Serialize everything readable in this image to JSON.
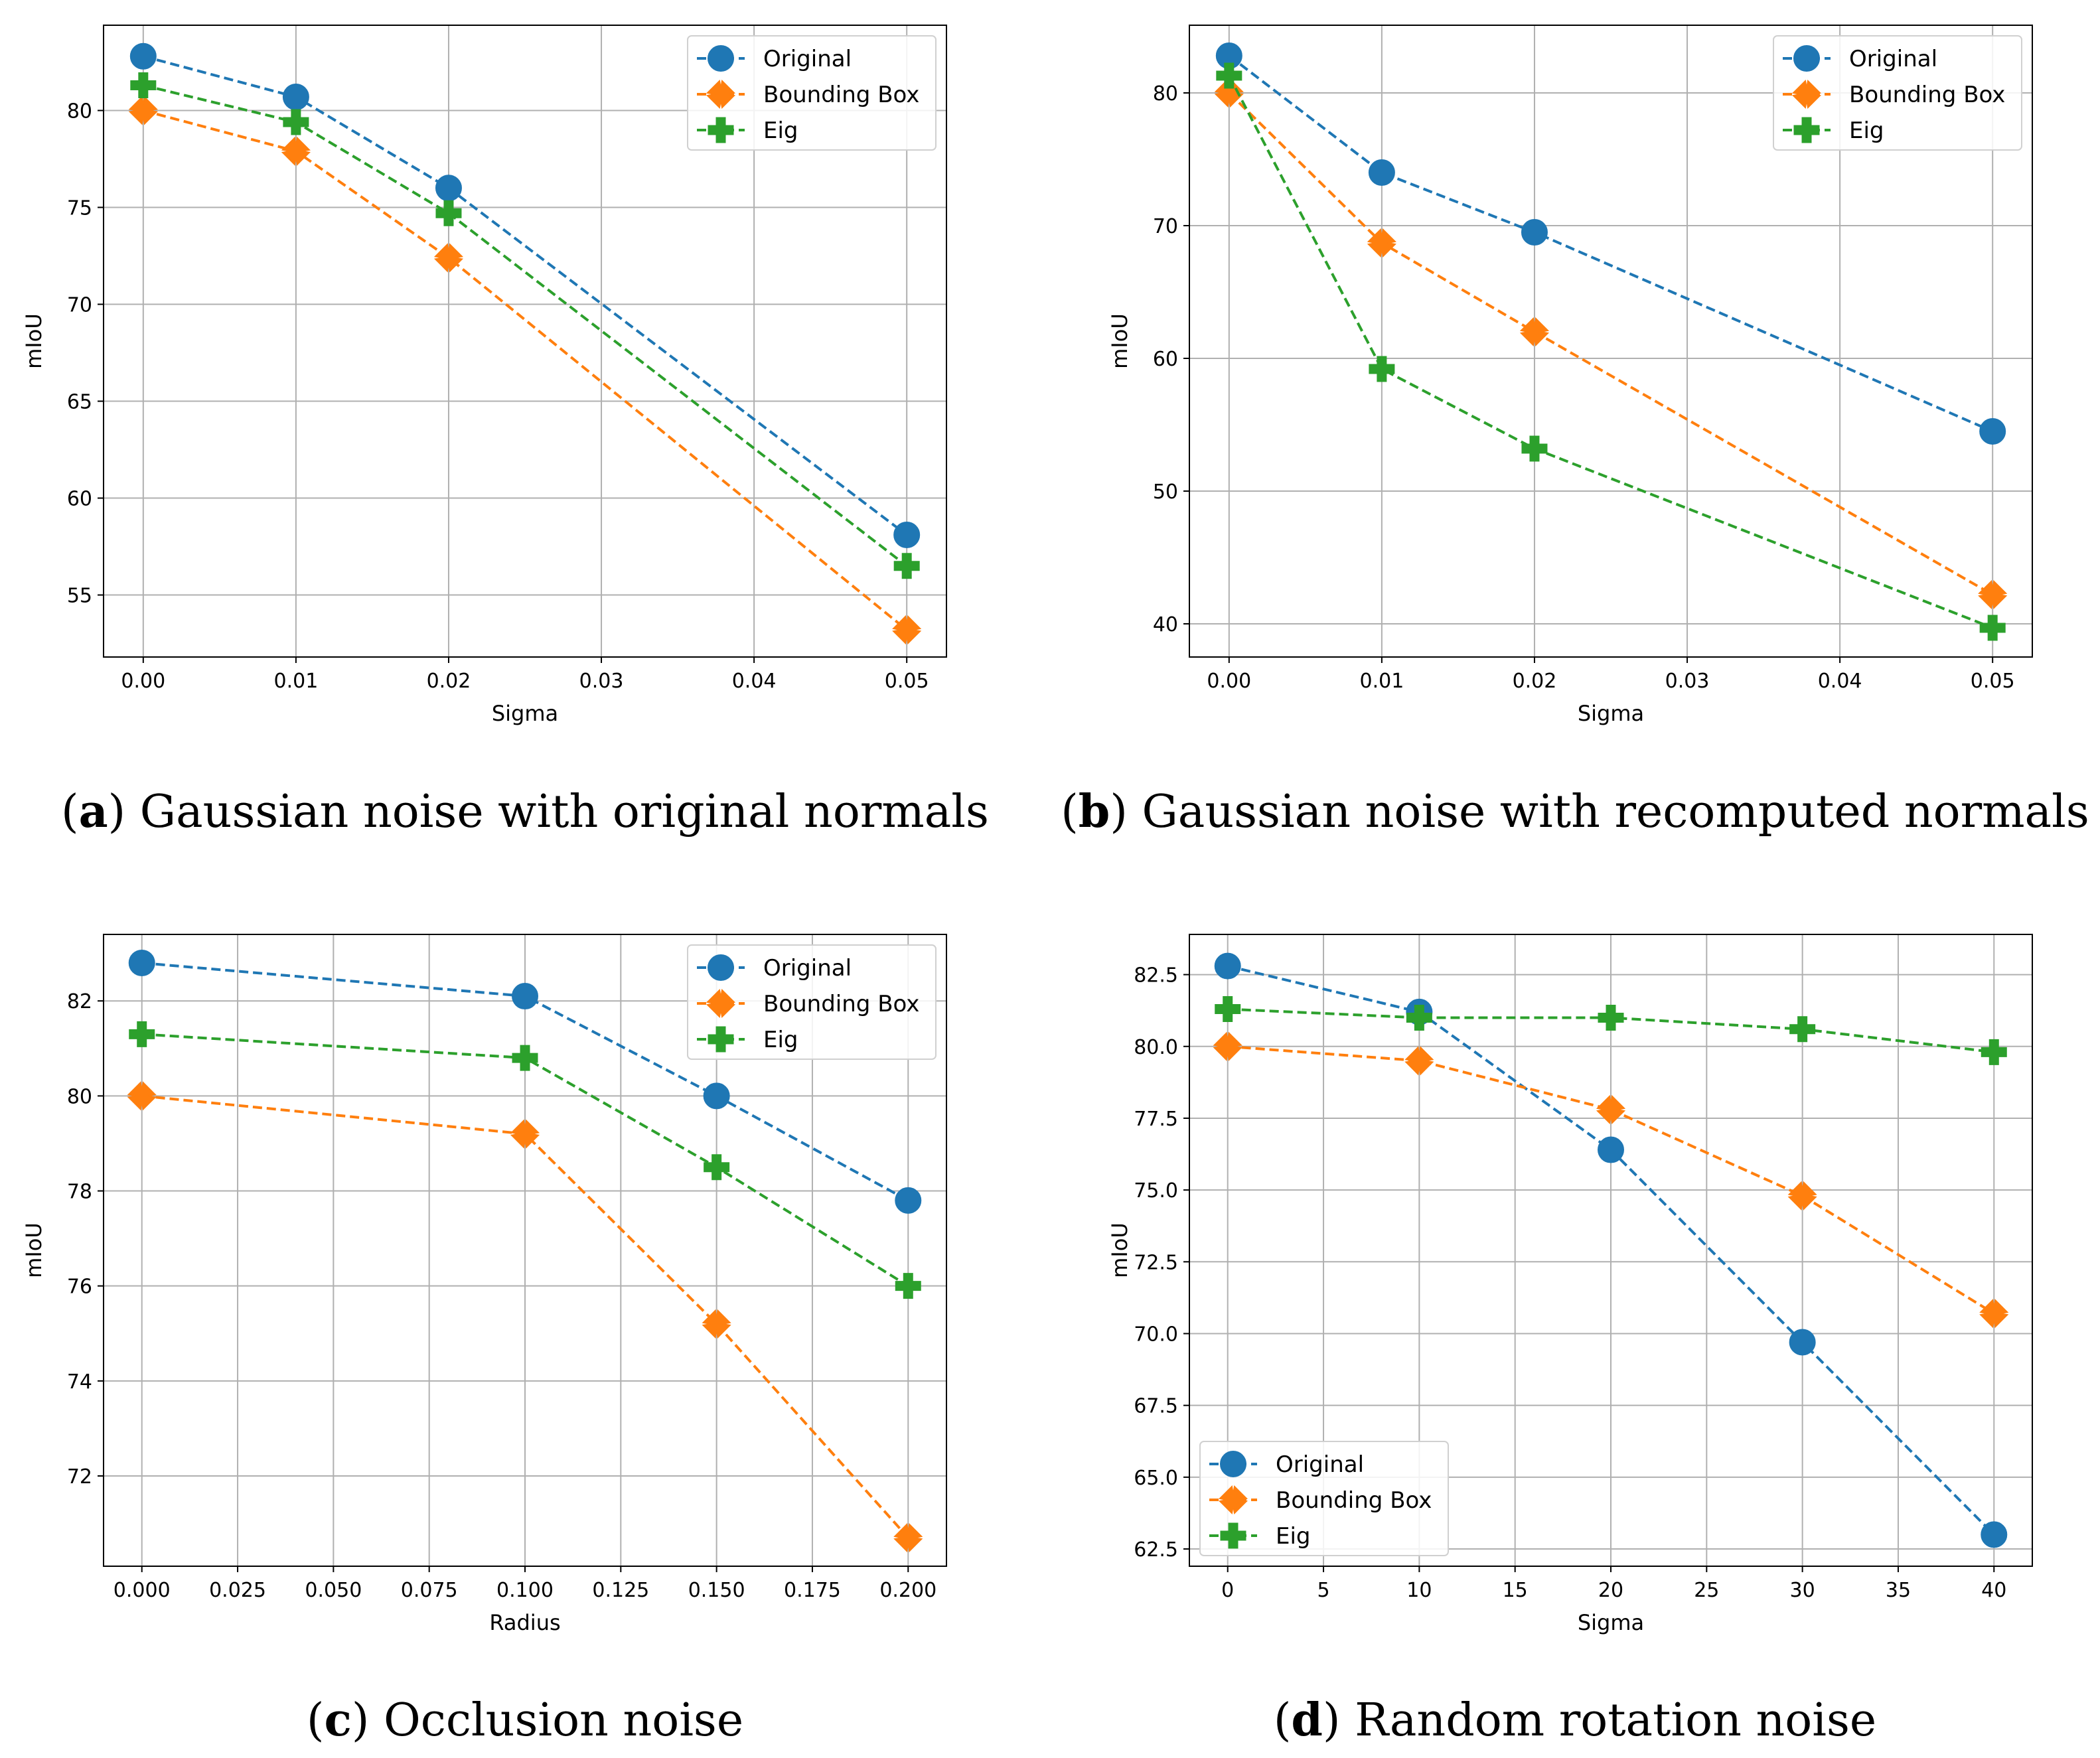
{
  "chart_data": [
    {
      "id": "a",
      "type": "line",
      "caption_letter": "a",
      "caption_text": "Gaussian noise with original normals",
      "xlabel": "Sigma",
      "ylabel": "mIoU",
      "xlim": [
        -0.0026,
        0.0526
      ],
      "ylim": [
        51.8,
        84.4
      ],
      "xticks": [
        0.0,
        0.01,
        0.02,
        0.03,
        0.04,
        0.05
      ],
      "xtick_labels": [
        "0.00",
        "0.01",
        "0.02",
        "0.03",
        "0.04",
        "0.05"
      ],
      "yticks": [
        55,
        60,
        65,
        70,
        75,
        80
      ],
      "ytick_labels": [
        "55",
        "60",
        "65",
        "70",
        "75",
        "80"
      ],
      "legend_position": "upper-right",
      "grid": true,
      "series": [
        {
          "name": "Original",
          "marker": "circle",
          "color": "#1f77b4",
          "x": [
            0.0,
            0.01,
            0.02,
            0.05
          ],
          "y": [
            82.8,
            80.7,
            76.0,
            58.1
          ]
        },
        {
          "name": "Bounding Box",
          "marker": "x",
          "color": "#ff7f0e",
          "x": [
            0.0,
            0.01,
            0.02,
            0.05
          ],
          "y": [
            80.0,
            77.9,
            72.4,
            53.2
          ]
        },
        {
          "name": "Eig",
          "marker": "plus",
          "color": "#2ca02c",
          "x": [
            0.0,
            0.01,
            0.02,
            0.05
          ],
          "y": [
            81.3,
            79.4,
            74.7,
            56.5
          ]
        }
      ]
    },
    {
      "id": "b",
      "type": "line",
      "caption_letter": "b",
      "caption_text": "Gaussian noise with recomputed normals",
      "xlabel": "Sigma",
      "ylabel": "mIoU",
      "xlim": [
        -0.0026,
        0.0526
      ],
      "ylim": [
        37.5,
        85.1
      ],
      "xticks": [
        0.0,
        0.01,
        0.02,
        0.03,
        0.04,
        0.05
      ],
      "xtick_labels": [
        "0.00",
        "0.01",
        "0.02",
        "0.03",
        "0.04",
        "0.05"
      ],
      "yticks": [
        40,
        50,
        60,
        70,
        80
      ],
      "ytick_labels": [
        "40",
        "50",
        "60",
        "70",
        "80"
      ],
      "legend_position": "upper-right",
      "grid": true,
      "series": [
        {
          "name": "Original",
          "marker": "circle",
          "color": "#1f77b4",
          "x": [
            0.0,
            0.01,
            0.02,
            0.05
          ],
          "y": [
            82.8,
            74.0,
            69.5,
            54.5
          ]
        },
        {
          "name": "Bounding Box",
          "marker": "x",
          "color": "#ff7f0e",
          "x": [
            0.0,
            0.01,
            0.02,
            0.05
          ],
          "y": [
            80.0,
            68.7,
            62.0,
            42.2
          ]
        },
        {
          "name": "Eig",
          "marker": "plus",
          "color": "#2ca02c",
          "x": [
            0.0,
            0.01,
            0.02,
            0.05
          ],
          "y": [
            81.3,
            59.2,
            53.2,
            39.7
          ]
        }
      ]
    },
    {
      "id": "c",
      "type": "line",
      "caption_letter": "c",
      "caption_text": "Occlusion noise",
      "xlabel": "Radius",
      "ylabel": "mIoU",
      "xlim": [
        -0.01,
        0.21
      ],
      "ylim": [
        70.1,
        83.4
      ],
      "xticks": [
        0.0,
        0.025,
        0.05,
        0.075,
        0.1,
        0.125,
        0.15,
        0.175,
        0.2
      ],
      "xtick_labels": [
        "0.000",
        "0.025",
        "0.050",
        "0.075",
        "0.100",
        "0.125",
        "0.150",
        "0.175",
        "0.200"
      ],
      "yticks": [
        72,
        74,
        76,
        78,
        80,
        82
      ],
      "ytick_labels": [
        "72",
        "74",
        "76",
        "78",
        "80",
        "82"
      ],
      "legend_position": "upper-right",
      "grid": true,
      "series": [
        {
          "name": "Original",
          "marker": "circle",
          "color": "#1f77b4",
          "x": [
            0.0,
            0.1,
            0.15,
            0.2
          ],
          "y": [
            82.8,
            82.1,
            80.0,
            77.8
          ]
        },
        {
          "name": "Bounding Box",
          "marker": "x",
          "color": "#ff7f0e",
          "x": [
            0.0,
            0.1,
            0.15,
            0.2
          ],
          "y": [
            80.0,
            79.2,
            75.2,
            70.7
          ]
        },
        {
          "name": "Eig",
          "marker": "plus",
          "color": "#2ca02c",
          "x": [
            0.0,
            0.1,
            0.15,
            0.2
          ],
          "y": [
            81.3,
            80.8,
            78.5,
            76.0
          ]
        }
      ]
    },
    {
      "id": "d",
      "type": "line",
      "caption_letter": "d",
      "caption_text": "Random rotation noise",
      "xlabel": "Sigma",
      "ylabel": "mIoU",
      "xlim": [
        -2.0,
        42.0
      ],
      "ylim": [
        61.9,
        83.9
      ],
      "xticks": [
        0,
        5,
        10,
        15,
        20,
        25,
        30,
        35,
        40
      ],
      "xtick_labels": [
        "0",
        "5",
        "10",
        "15",
        "20",
        "25",
        "30",
        "35",
        "40"
      ],
      "yticks": [
        62.5,
        65.0,
        67.5,
        70.0,
        72.5,
        75.0,
        77.5,
        80.0,
        82.5
      ],
      "ytick_labels": [
        "62.5",
        "65.0",
        "67.5",
        "70.0",
        "72.5",
        "75.0",
        "77.5",
        "80.0",
        "82.5"
      ],
      "legend_position": "lower-left",
      "grid": true,
      "series": [
        {
          "name": "Original",
          "marker": "circle",
          "color": "#1f77b4",
          "x": [
            0,
            10,
            20,
            30,
            40
          ],
          "y": [
            82.8,
            81.2,
            76.4,
            69.7,
            63.0
          ]
        },
        {
          "name": "Bounding Box",
          "marker": "x",
          "color": "#ff7f0e",
          "x": [
            0,
            10,
            20,
            30,
            40
          ],
          "y": [
            80.0,
            79.5,
            77.8,
            74.8,
            70.7
          ]
        },
        {
          "name": "Eig",
          "marker": "plus",
          "color": "#2ca02c",
          "x": [
            0,
            10,
            20,
            30,
            40
          ],
          "y": [
            81.3,
            81.0,
            81.0,
            80.6,
            79.8
          ]
        }
      ]
    }
  ]
}
